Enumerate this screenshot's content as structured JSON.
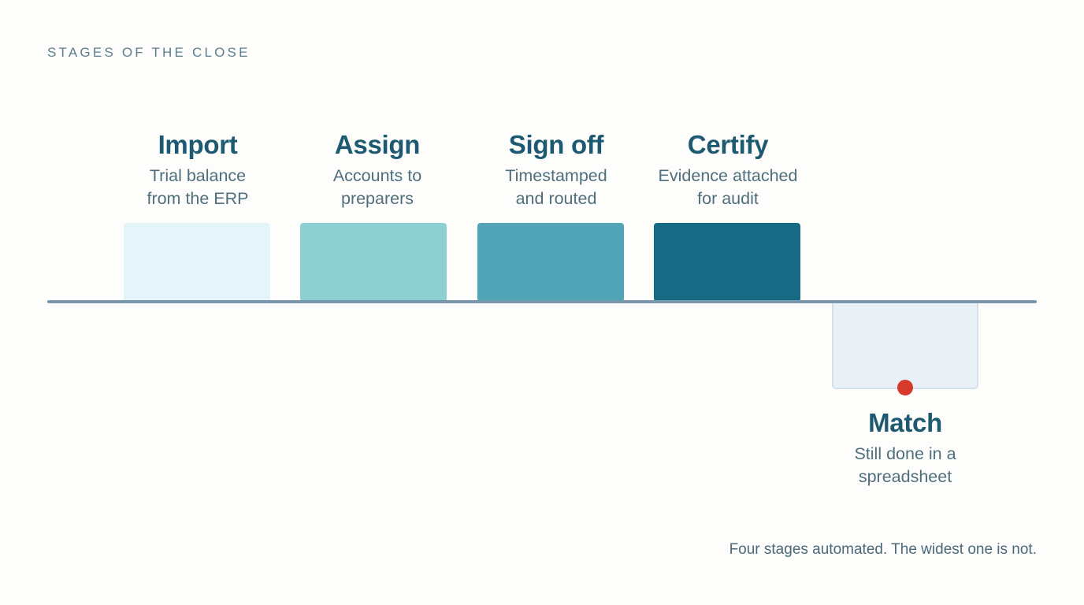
{
  "header": {
    "eyebrow": "STAGES OF THE CLOSE"
  },
  "stages": [
    {
      "title": "Import",
      "desc_line1": "Trial balance",
      "desc_line2": "from the ERP",
      "color": "#e4f4f9"
    },
    {
      "title": "Assign",
      "desc_line1": "Accounts to",
      "desc_line2": "preparers",
      "color": "#8dd0d1"
    },
    {
      "title": "Sign off",
      "desc_line1": "Timestamped",
      "desc_line2": "and routed",
      "color": "#52a5b6"
    },
    {
      "title": "Certify",
      "desc_line1": "Evidence attached",
      "desc_line2": "for audit",
      "color": "#176a84"
    }
  ],
  "manual_stage": {
    "title": "Match",
    "desc_line1": "Still done in a",
    "desc_line2": "spreadsheet",
    "marker_color": "#d63a2a"
  },
  "footer": {
    "caption": "Four stages automated. The widest one is not."
  }
}
